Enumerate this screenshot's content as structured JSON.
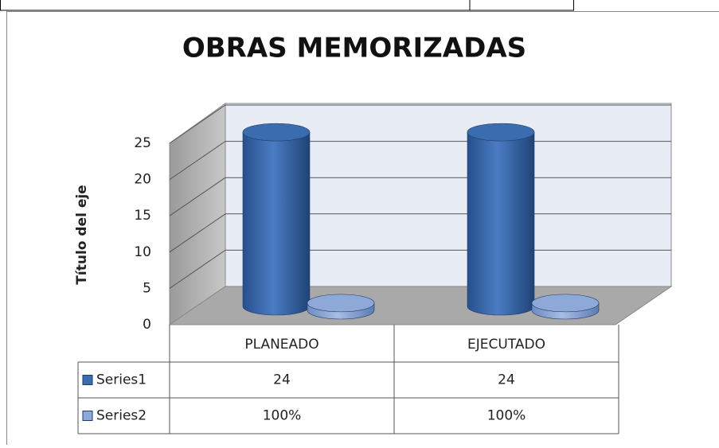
{
  "chart_data": {
    "type": "bar3d",
    "title": "OBRAS MEMORIZADAS",
    "y_label": "Título del eje",
    "categories": [
      "PLANEADO",
      "EJECUTADO"
    ],
    "series": [
      {
        "name": "Series1",
        "color": "#3b6cb0",
        "values": [
          24,
          24
        ]
      },
      {
        "name": "Series2",
        "color": "#8ea8d8",
        "values": [
          1,
          1
        ],
        "value_labels": [
          "100%",
          "100%"
        ]
      }
    ],
    "ylim": [
      0,
      25
    ],
    "yticks": [
      0,
      5,
      10,
      15,
      20,
      25
    ],
    "grid": true,
    "data_table": true
  }
}
